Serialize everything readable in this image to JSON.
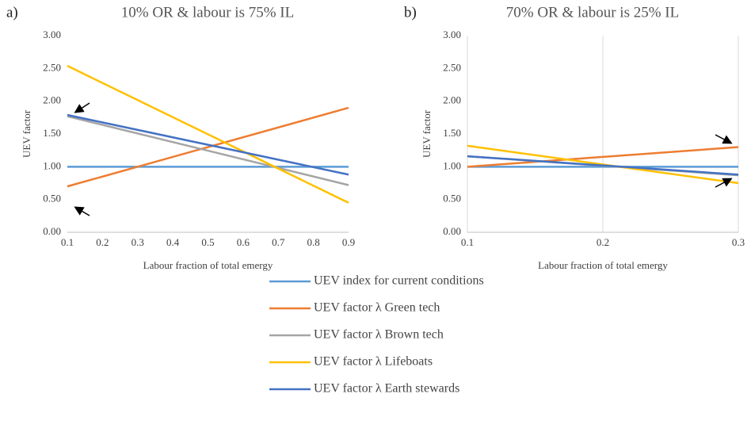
{
  "chart_data": [
    {
      "type": "line",
      "panel": "a)",
      "title": "10% OR & labour is 75% IL",
      "x_label": "Labour fraction of total emergy",
      "y_label": "UEV factor",
      "x": [
        0.1,
        0.9
      ],
      "xlim": [
        0.1,
        0.9
      ],
      "xticks": [
        0.1,
        0.2,
        0.3,
        0.4,
        0.5,
        0.6,
        0.7,
        0.8,
        0.9
      ],
      "ylim": [
        0,
        3
      ],
      "yticks": [
        {
          "value": 0,
          "label": "0.00"
        },
        {
          "value": 0.5,
          "label": "0.50"
        },
        {
          "value": 1,
          "label": "1.00"
        },
        {
          "value": 1.5,
          "label": "1.50"
        },
        {
          "value": 2,
          "label": "2.00"
        },
        {
          "value": 2.5,
          "label": "2.50"
        },
        {
          "value": 3,
          "label": "3.00"
        }
      ],
      "grid": "none",
      "series": [
        {
          "color": "#5b9bd5",
          "values": [
            1.0,
            1.0
          ]
        },
        {
          "color": "#ed7d31",
          "values": [
            0.7,
            1.9
          ]
        },
        {
          "color": "#a5a5a5",
          "values": [
            1.77,
            0.72
          ]
        },
        {
          "color": "#ffc000",
          "values": [
            2.54,
            0.45
          ]
        },
        {
          "color": "#4472c4",
          "values": [
            1.79,
            0.88
          ]
        }
      ]
    },
    {
      "type": "line",
      "panel": "b)",
      "title": "70% OR & labour is 25% IL",
      "x_label": "Labour fraction of total emergy",
      "y_label": "UEV factor",
      "x": [
        0.1,
        0.3
      ],
      "xlim": [
        0.1,
        0.3
      ],
      "xticks": [
        0.1,
        0.2,
        0.3
      ],
      "ylim": [
        0,
        3
      ],
      "yticks": [
        {
          "value": 0,
          "label": "0.00"
        },
        {
          "value": 0.5,
          "label": "0.50"
        },
        {
          "value": 1,
          "label": "1.00"
        },
        {
          "value": 1.5,
          "label": "1.50"
        },
        {
          "value": 2,
          "label": "2.00"
        },
        {
          "value": 2.5,
          "label": "2.50"
        },
        {
          "value": 3,
          "label": "3.00"
        }
      ],
      "grid": "x",
      "series": [
        {
          "color": "#5b9bd5",
          "values": [
            1.0,
            1.0
          ]
        },
        {
          "color": "#ed7d31",
          "values": [
            1.0,
            1.3
          ]
        },
        {
          "color": "#a5a5a5",
          "values": [
            1.16,
            0.87
          ]
        },
        {
          "color": "#ffc000",
          "values": [
            1.32,
            0.75
          ]
        },
        {
          "color": "#4472c4",
          "values": [
            1.16,
            0.88
          ]
        }
      ]
    }
  ],
  "legend": [
    {
      "name": "UEV index for current conditions",
      "color": "#5b9bd5"
    },
    {
      "name": "UEV factor λ Green tech",
      "color": "#ed7d31"
    },
    {
      "name": "UEV factor λ Brown tech",
      "color": "#a5a5a5"
    },
    {
      "name": "UEV factor λ Lifeboats",
      "color": "#ffc000"
    },
    {
      "name": "UEV factor λ Earth stewards",
      "color": "#4472c4"
    }
  ]
}
